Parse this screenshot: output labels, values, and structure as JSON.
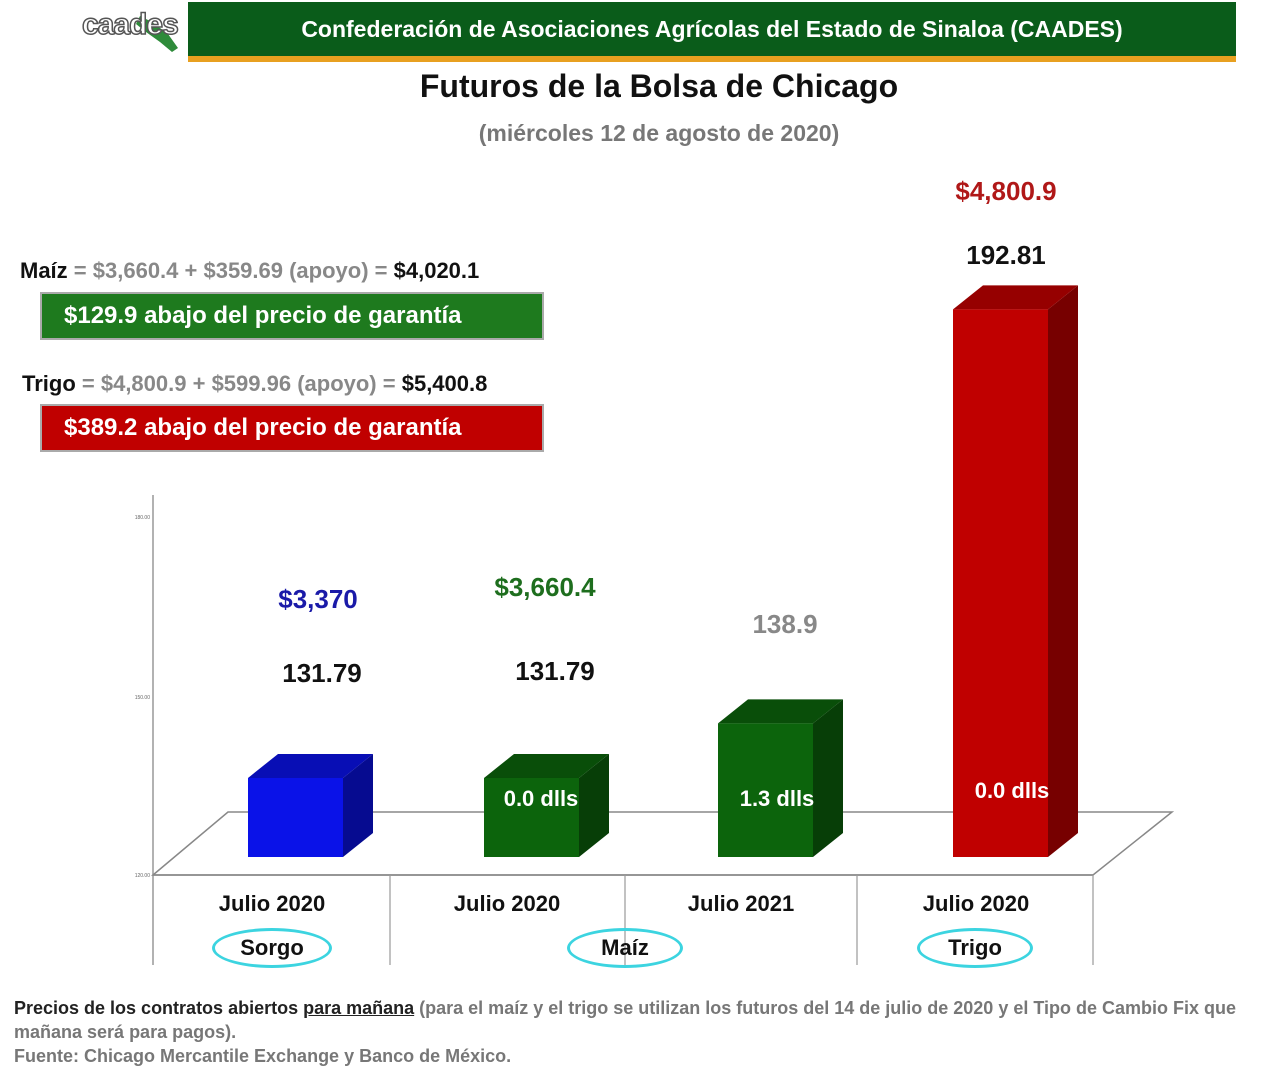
{
  "header": {
    "logo_text": "caades",
    "banner": "Confederación de Asociaciones Agrícolas del Estado de Sinaloa (CAADES)"
  },
  "title": "Futuros de la Bolsa de Chicago",
  "subtitle": "(miércoles 12 de agosto de 2020)",
  "equations": [
    {
      "crop": "Maíz",
      "expr": " = $3,660.4 + $359.69 (apoyo) = ",
      "total": "$4,020.1",
      "note": "$129.9 abajo del precio de garantía",
      "note_color": "#1e7a1e"
    },
    {
      "crop": "Trigo",
      "expr": " = $4,800.9 + $599.96 (apoyo) = ",
      "total": "$5,400.8",
      "note": "$389.2 abajo del precio de garantía",
      "note_color": "#c00000"
    }
  ],
  "chart_data": {
    "type": "bar",
    "categories": [
      "Julio 2020",
      "Julio 2020",
      "Julio 2021",
      "Julio 2020"
    ],
    "groups": [
      "Sorgo",
      "Maíz",
      "Trigo"
    ],
    "values": [
      131.79,
      131.79,
      138.9,
      192.81
    ],
    "value_labels": [
      "131.79",
      "131.79",
      "138.9",
      "192.81"
    ],
    "price_labels": [
      "$3,370",
      "$3,660.4",
      "",
      "$4,800.9"
    ],
    "change_labels": [
      "",
      "0.0 dlls",
      "1.3 dlls",
      "0.0 dlls"
    ],
    "colors": [
      "#0a12e8",
      "#0c640c",
      "#0c640c",
      "#c00000"
    ],
    "price_colors": [
      "#1a1aa8",
      "#1e6e1e",
      "",
      "#b01818"
    ],
    "value_label_colors": [
      "#111111",
      "#111111",
      "#888888",
      "#111111"
    ],
    "y_ticks": [
      "180.00",
      "150.00",
      "120.00"
    ],
    "ylim": [
      120,
      200
    ]
  },
  "footer": {
    "line1_a": "Precios de los contratos abiertos ",
    "line1_u": "para mañana",
    "line1_b": " (para el maíz y el trigo se utilizan los futuros del 14 de julio de 2020 y el Tipo de Cambio Fix que mañana será para pagos).",
    "line2": "Fuente: Chicago Mercantile Exchange y Banco de México."
  }
}
